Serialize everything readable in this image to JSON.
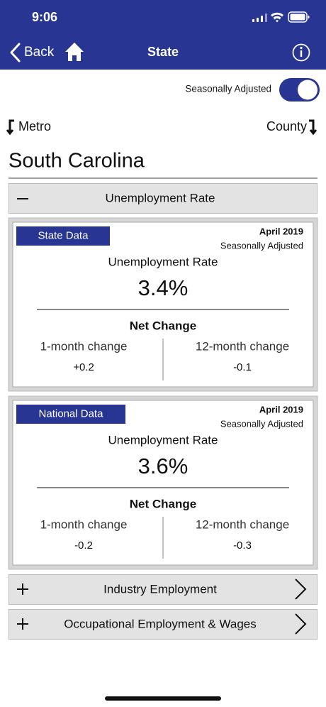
{
  "status_bar": {
    "time": "9:06"
  },
  "nav": {
    "back": "Back",
    "title": "State"
  },
  "toggle": {
    "label": "Seasonally Adjusted",
    "on": true
  },
  "links": {
    "left": "Metro",
    "right": "County"
  },
  "state_name": "South Carolina",
  "sections": [
    "Unemployment Rate",
    "Industry Employment",
    "Occupational Employment & Wages"
  ],
  "cards": [
    {
      "badge": "State Data",
      "period": "April 2019",
      "adjustment": "Seasonally Adjusted",
      "measure": "Unemployment Rate",
      "value": "3.4%",
      "net_change": "Net Change",
      "changes": [
        {
          "label": "1-month change",
          "value": "+0.2"
        },
        {
          "label": "12-month change",
          "value": "-0.1"
        }
      ]
    },
    {
      "badge": "National Data",
      "period": "April 2019",
      "adjustment": "Seasonally Adjusted",
      "measure": "Unemployment Rate",
      "value": "3.6%",
      "net_change": "Net Change",
      "changes": [
        {
          "label": "1-month change",
          "value": "-0.2"
        },
        {
          "label": "12-month change",
          "value": "-0.3"
        }
      ]
    }
  ]
}
